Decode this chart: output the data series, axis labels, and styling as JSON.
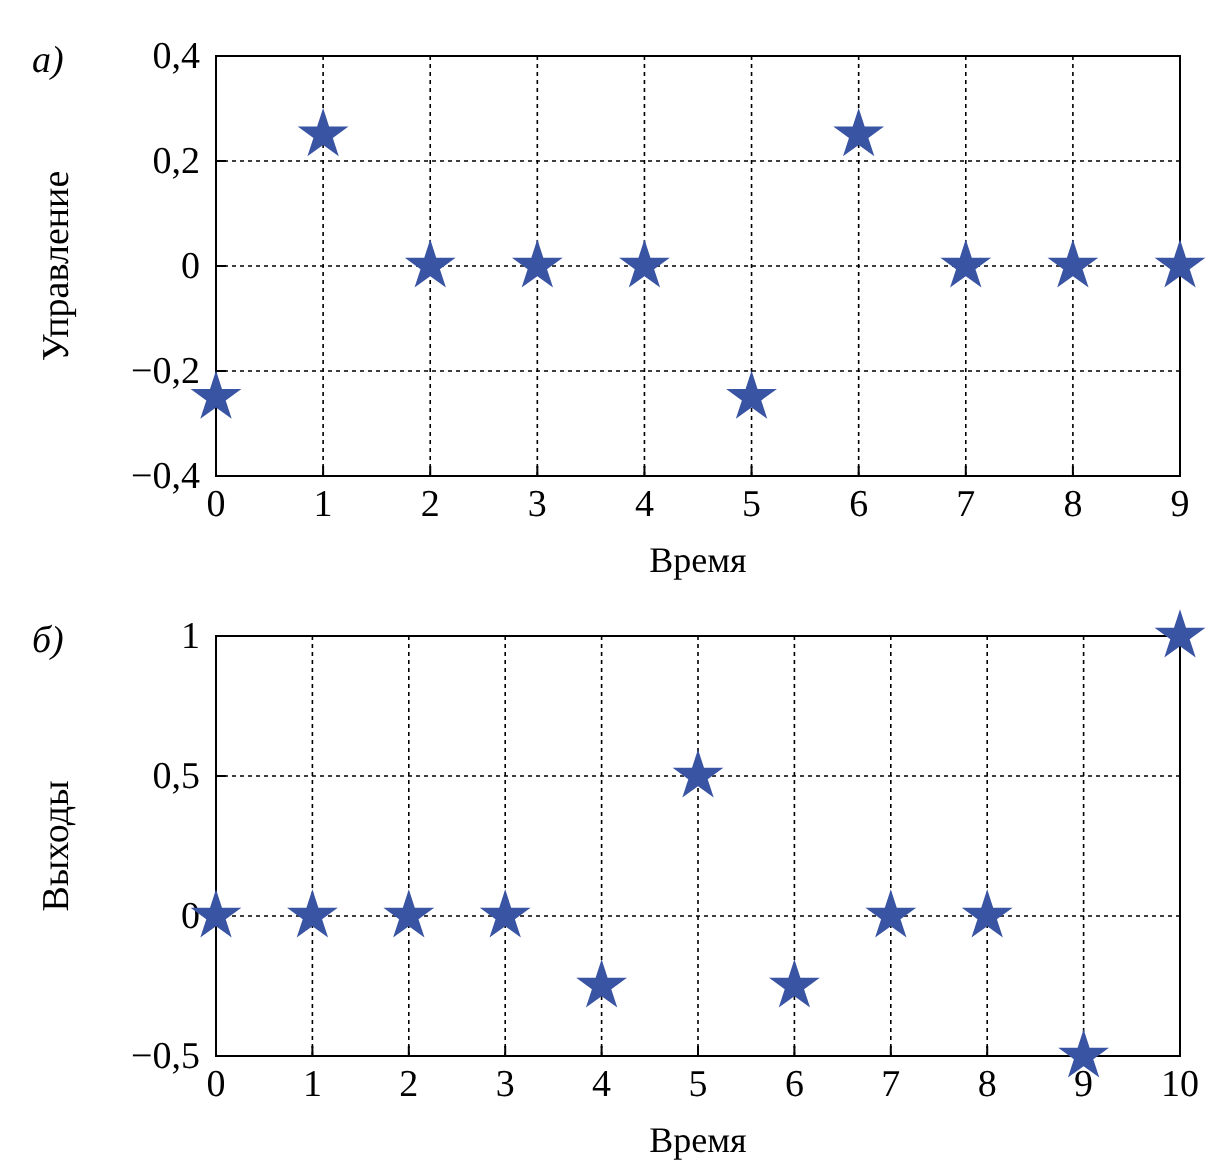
{
  "chart_data": [
    {
      "type": "scatter",
      "annotations": [
        "а)"
      ],
      "xlabel": "Время",
      "ylabel": "Управление",
      "x": [
        0,
        1,
        2,
        3,
        4,
        5,
        6,
        7,
        8,
        9
      ],
      "xlim": [
        0,
        9
      ],
      "xticks": [
        0,
        1,
        2,
        3,
        4,
        5,
        6,
        7,
        8,
        9
      ],
      "ylim": [
        -0.4,
        0.4
      ],
      "yticks": [
        {
          "value": -0.4,
          "label": "−0,4"
        },
        {
          "value": -0.2,
          "label": "−0,2"
        },
        {
          "value": 0,
          "label": "0"
        },
        {
          "value": 0.2,
          "label": "0,2"
        },
        {
          "value": 0.4,
          "label": "0,4"
        }
      ],
      "grid": true,
      "marker": "star",
      "series": [
        {
          "color": "#3a54a4",
          "values": [
            -0.25,
            0.25,
            0,
            0,
            0,
            -0.25,
            0.25,
            0,
            0,
            0
          ]
        }
      ]
    },
    {
      "type": "scatter",
      "annotations": [
        "б)"
      ],
      "xlabel": "Время",
      "ylabel": "Выходы",
      "x": [
        0,
        1,
        2,
        3,
        4,
        5,
        6,
        7,
        8,
        9,
        10
      ],
      "xlim": [
        0,
        10
      ],
      "xticks": [
        0,
        1,
        2,
        3,
        4,
        5,
        6,
        7,
        8,
        9,
        10
      ],
      "ylim": [
        -0.5,
        1
      ],
      "yticks": [
        {
          "value": -0.5,
          "label": "−0,5"
        },
        {
          "value": 0,
          "label": "0"
        },
        {
          "value": 0.5,
          "label": "0,5"
        },
        1
      ],
      "grid": true,
      "marker": "star",
      "series": [
        {
          "color": "#3a54a4",
          "values": [
            0,
            0,
            0,
            0,
            -0.25,
            0.5,
            -0.25,
            0,
            0,
            -0.5,
            1
          ]
        }
      ]
    }
  ]
}
